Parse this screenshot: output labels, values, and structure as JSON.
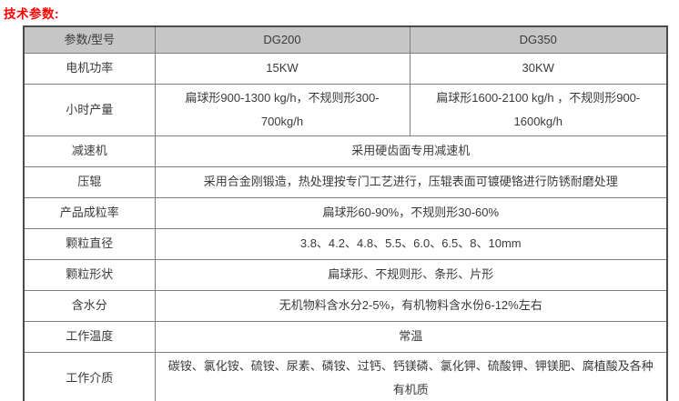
{
  "page_title": "技术参数:",
  "colors": {
    "title_red": "#ff0000",
    "header_bg": "#c6c6c6",
    "inner_border": "#7f7f7f",
    "outer_border": "#4a4a4a",
    "text": "#3a3a3a"
  },
  "table": {
    "header": [
      "参数/型号",
      "DG200",
      "DG350"
    ],
    "rows": [
      {
        "label": "电机功率",
        "cells": [
          "15KW",
          "30KW"
        ]
      },
      {
        "label": "小时产量",
        "cells": [
          "扁球形900-1300 kg/h，不规则形300-700kg/h",
          "扁球形1600-2100 kg/h ，不规则形900-1600kg/h"
        ]
      },
      {
        "label": "减速机",
        "cells": [
          "采用硬齿面专用减速机"
        ]
      },
      {
        "label": "压辊",
        "cells": [
          "采用合金刚锻造，热处理按专门工艺进行，压辊表面可镀硬铬进行防锈耐磨处理"
        ]
      },
      {
        "label": "产品成粒率",
        "cells": [
          "扁球形60-90%，不规则形30-60%"
        ]
      },
      {
        "label": "颗粒直径",
        "cells": [
          "3.8、4.2、4.8、5.5、6.0、6.5、8、10mm"
        ]
      },
      {
        "label": "颗粒形状",
        "cells": [
          "扁球形、不规则形、条形、片形"
        ]
      },
      {
        "label": "含水分",
        "cells": [
          "无机物料含水分2-5%，有机物料含水份6-12%左右"
        ]
      },
      {
        "label": "工作温度",
        "cells": [
          "常温"
        ]
      },
      {
        "label": "工作介质",
        "cells": [
          "碳铵、氯化铵、硫铵、尿素、磷铵、过钙、钙镁磷、氯化钾、硫酸钾、钾镁肥、腐植酸及各种有机质"
        ]
      }
    ]
  }
}
